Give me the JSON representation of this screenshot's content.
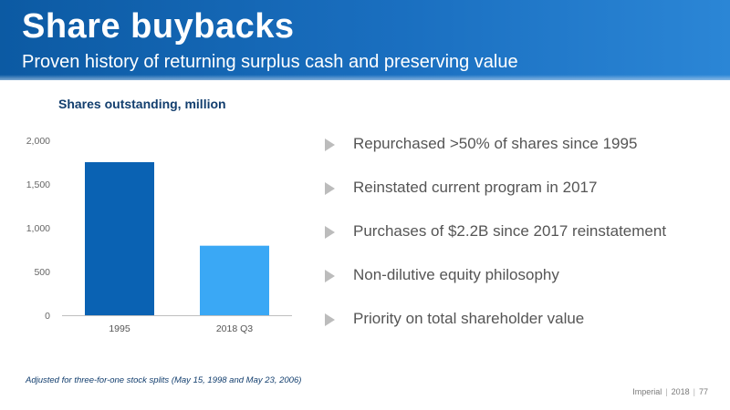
{
  "header": {
    "title": "Share buybacks",
    "subtitle": "Proven history of returning surplus cash and preserving value"
  },
  "chart_data": {
    "type": "bar",
    "title": "Shares outstanding, million",
    "categories": [
      "1995",
      "2018 Q3"
    ],
    "values": [
      1750,
      795
    ],
    "bar_colors": [
      "#0a62b3",
      "#3aa8f5"
    ],
    "ylim": [
      0,
      2000
    ],
    "yticks": [
      0,
      500,
      1000,
      1500,
      2000
    ],
    "ytick_labels": [
      "0",
      "500",
      "1,000",
      "1,500",
      "2,000"
    ],
    "grid": false
  },
  "bullets": [
    "Repurchased >50% of shares since 1995",
    "Reinstated current program in 2017",
    "Purchases of $2.2B since 2017 reinstatement",
    "Non-dilutive equity philosophy",
    "Priority on total shareholder value"
  ],
  "footnote": "Adjusted for three-for-one stock splits (May 15, 1998 and May 23, 2006)",
  "footer": {
    "company": "Imperial",
    "year": "2018",
    "page": "77"
  }
}
